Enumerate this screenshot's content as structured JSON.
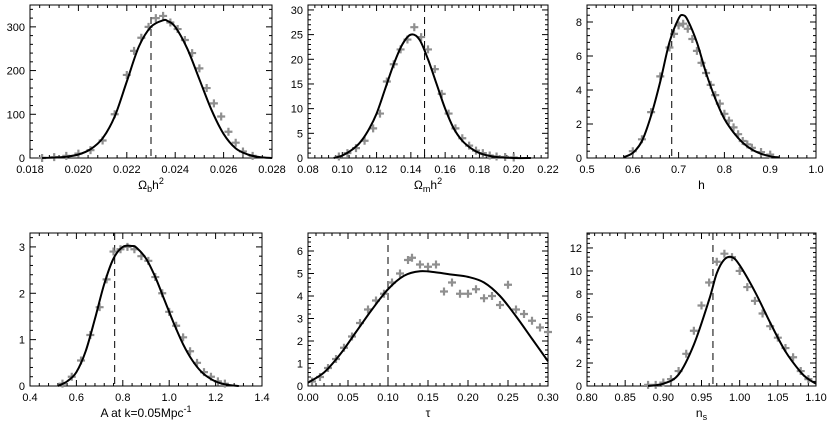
{
  "colors": {
    "curve": "#000000",
    "points": "#8f8f8f",
    "axis": "#000000"
  },
  "chart_data": [
    {
      "type": "line",
      "xlabel_base": "Ω",
      "xlabel_sub": "b",
      "xlabel_tail": "h",
      "xlabel_sup": "2",
      "xlim": [
        0.018,
        0.028
      ],
      "ylim": [
        0,
        350
      ],
      "xticks": [
        0.018,
        0.02,
        0.022,
        0.024,
        0.026,
        0.028
      ],
      "xticklabels": [
        "0.018",
        "0.020",
        "0.022",
        "0.024",
        "0.026",
        "0.028"
      ],
      "yticks": [
        0,
        100,
        200,
        300
      ],
      "yticklabels": [
        "0",
        "100",
        "200",
        "300"
      ],
      "vline": 0.023,
      "curve": {
        "x": [
          0.0185,
          0.019,
          0.0195,
          0.02,
          0.0205,
          0.021,
          0.0215,
          0.022,
          0.0225,
          0.023,
          0.0235,
          0.0237,
          0.024,
          0.0245,
          0.025,
          0.0255,
          0.026,
          0.0265,
          0.027,
          0.0275,
          0.028
        ],
        "y": [
          0,
          1,
          3,
          8,
          20,
          45,
          95,
          175,
          255,
          300,
          315,
          313,
          300,
          250,
          180,
          110,
          55,
          22,
          8,
          2,
          0
        ]
      },
      "points": {
        "x": [
          0.0185,
          0.019,
          0.0195,
          0.02,
          0.0205,
          0.021,
          0.0215,
          0.022,
          0.0223,
          0.0226,
          0.0229,
          0.0232,
          0.0235,
          0.0238,
          0.0241,
          0.0244,
          0.0247,
          0.025,
          0.0253,
          0.0256,
          0.0259,
          0.0262,
          0.0265,
          0.0268,
          0.0272
        ],
        "y": [
          0,
          2,
          5,
          10,
          18,
          40,
          100,
          190,
          245,
          275,
          300,
          320,
          325,
          310,
          295,
          270,
          240,
          205,
          160,
          125,
          95,
          60,
          35,
          15,
          5
        ]
      }
    },
    {
      "type": "line",
      "xlabel_base": "Ω",
      "xlabel_sub": "m",
      "xlabel_tail": "h",
      "xlabel_sup": "2",
      "xlim": [
        0.08,
        0.22
      ],
      "ylim": [
        0,
        31
      ],
      "xticks": [
        0.08,
        0.1,
        0.12,
        0.14,
        0.16,
        0.18,
        0.2,
        0.22
      ],
      "xticklabels": [
        "0.08",
        "0.10",
        "0.12",
        "0.14",
        "0.16",
        "0.18",
        "0.20",
        "0.22"
      ],
      "yticks": [
        0,
        5,
        10,
        15,
        20,
        25,
        30
      ],
      "yticklabels": [
        "0",
        "5",
        "10",
        "15",
        "20",
        "25",
        "30"
      ],
      "vline": 0.148,
      "curve": {
        "x": [
          0.095,
          0.1,
          0.105,
          0.11,
          0.115,
          0.12,
          0.125,
          0.13,
          0.135,
          0.14,
          0.145,
          0.15,
          0.155,
          0.16,
          0.165,
          0.17,
          0.175,
          0.18,
          0.185,
          0.19,
          0.2,
          0.21
        ],
        "y": [
          0,
          0.5,
          1.5,
          3,
          5.5,
          9,
          14,
          19,
          23,
          25,
          24,
          20,
          15,
          10,
          6,
          3.5,
          2,
          1,
          0.5,
          0.2,
          0,
          0
        ]
      },
      "points": {
        "x": [
          0.098,
          0.103,
          0.108,
          0.113,
          0.118,
          0.122,
          0.126,
          0.13,
          0.134,
          0.138,
          0.142,
          0.146,
          0.15,
          0.154,
          0.158,
          0.162,
          0.166,
          0.17,
          0.174,
          0.178,
          0.182,
          0.186,
          0.19,
          0.195,
          0.2
        ],
        "y": [
          0.3,
          1,
          2,
          3.5,
          6,
          9,
          15.5,
          19,
          22,
          24,
          26.5,
          24.5,
          22,
          18,
          13,
          9,
          6,
          4,
          2.5,
          1.5,
          1,
          0.5,
          0.3,
          0.2,
          0.1
        ]
      }
    },
    {
      "type": "line",
      "xlabel_base": "h",
      "xlabel_sub": "",
      "xlabel_tail": "",
      "xlabel_sup": "",
      "xlim": [
        0.5,
        1.0
      ],
      "ylim": [
        0,
        9
      ],
      "xticks": [
        0.5,
        0.6,
        0.7,
        0.8,
        0.9,
        1.0
      ],
      "xticklabels": [
        "0.5",
        "0.6",
        "0.7",
        "0.8",
        "0.9",
        "1.0"
      ],
      "yticks": [
        0,
        2,
        4,
        6,
        8
      ],
      "yticklabels": [
        "0",
        "2",
        "4",
        "6",
        "8"
      ],
      "vline": 0.685,
      "curve": {
        "x": [
          0.58,
          0.6,
          0.62,
          0.64,
          0.66,
          0.68,
          0.7,
          0.71,
          0.72,
          0.74,
          0.76,
          0.78,
          0.8,
          0.82,
          0.84,
          0.86,
          0.88,
          0.9,
          0.92
        ],
        "y": [
          0.05,
          0.3,
          1,
          2.5,
          4.5,
          6.8,
          8.2,
          8.4,
          8.1,
          6.8,
          5,
          3.5,
          2.3,
          1.5,
          0.9,
          0.5,
          0.25,
          0.1,
          0.03
        ]
      },
      "points": {
        "x": [
          0.6,
          0.62,
          0.64,
          0.66,
          0.68,
          0.69,
          0.7,
          0.71,
          0.72,
          0.73,
          0.74,
          0.75,
          0.76,
          0.77,
          0.78,
          0.79,
          0.8,
          0.81,
          0.82,
          0.83,
          0.84,
          0.85,
          0.86,
          0.88,
          0.9
        ],
        "y": [
          0.4,
          1.1,
          2.7,
          4.8,
          6.5,
          7.3,
          7.8,
          7.9,
          7.6,
          7,
          6.3,
          5.6,
          5,
          4.3,
          3.7,
          3.2,
          2.6,
          2.2,
          1.8,
          1.4,
          1,
          0.8,
          0.6,
          0.35,
          0.2
        ]
      }
    },
    {
      "type": "line",
      "xlabel_base": "A at k=0.05Mpc",
      "xlabel_sub": "",
      "xlabel_tail": "",
      "xlabel_sup": "-1",
      "xlim": [
        0.4,
        1.4
      ],
      "ylim": [
        0,
        3.3
      ],
      "xticks": [
        0.4,
        0.6,
        0.8,
        1.0,
        1.2,
        1.4
      ],
      "xticklabels": [
        "0.4",
        "0.6",
        "0.8",
        "1.0",
        "1.2",
        "1.4"
      ],
      "yticks": [
        0,
        1,
        2,
        3
      ],
      "yticklabels": [
        "0",
        "1",
        "2",
        "3"
      ],
      "vline": 0.765,
      "curve": {
        "x": [
          0.52,
          0.56,
          0.6,
          0.64,
          0.68,
          0.72,
          0.76,
          0.8,
          0.84,
          0.86,
          0.9,
          0.94,
          0.98,
          1.02,
          1.06,
          1.1,
          1.14,
          1.18,
          1.22,
          1.26,
          1.3
        ],
        "y": [
          0,
          0.1,
          0.3,
          0.75,
          1.45,
          2.2,
          2.75,
          3,
          3.02,
          2.98,
          2.75,
          2.35,
          1.85,
          1.35,
          0.9,
          0.55,
          0.3,
          0.15,
          0.06,
          0.02,
          0
        ]
      },
      "points": {
        "x": [
          0.54,
          0.58,
          0.62,
          0.66,
          0.7,
          0.73,
          0.76,
          0.79,
          0.82,
          0.85,
          0.88,
          0.91,
          0.94,
          0.97,
          1.0,
          1.03,
          1.06,
          1.09,
          1.12,
          1.15,
          1.18,
          1.21,
          1.24
        ],
        "y": [
          0.05,
          0.2,
          0.55,
          1.1,
          1.7,
          2.3,
          2.9,
          2.95,
          3,
          2.95,
          2.8,
          2.7,
          2.35,
          2,
          1.6,
          1.3,
          1.05,
          0.75,
          0.5,
          0.3,
          0.2,
          0.1,
          0.05
        ]
      }
    },
    {
      "type": "line",
      "xlabel_base": "τ",
      "xlabel_sub": "",
      "xlabel_tail": "",
      "xlabel_sup": "",
      "xlim": [
        0.0,
        0.3
      ],
      "ylim": [
        0,
        6.8
      ],
      "xticks": [
        0,
        0.05,
        0.1,
        0.15,
        0.2,
        0.25,
        0.3
      ],
      "xticklabels": [
        "0.00",
        "0.05",
        "0.10",
        "0.15",
        "0.20",
        "0.25",
        "0.30"
      ],
      "yticks": [
        0,
        1,
        2,
        3,
        4,
        5,
        6
      ],
      "yticklabels": [
        "0",
        "1",
        "2",
        "3",
        "4",
        "5",
        "6"
      ],
      "vline": 0.1,
      "curve": {
        "x": [
          0,
          0.02,
          0.04,
          0.06,
          0.08,
          0.1,
          0.12,
          0.14,
          0.16,
          0.18,
          0.2,
          0.22,
          0.24,
          0.26,
          0.28,
          0.3
        ],
        "y": [
          0.15,
          0.6,
          1.4,
          2.4,
          3.4,
          4.3,
          4.9,
          5.1,
          5.05,
          4.95,
          4.85,
          4.6,
          4.0,
          3.1,
          2.1,
          1.1
        ]
      },
      "points": {
        "x": [
          0.005,
          0.015,
          0.025,
          0.035,
          0.045,
          0.055,
          0.065,
          0.075,
          0.085,
          0.095,
          0.105,
          0.115,
          0.125,
          0.13,
          0.14,
          0.15,
          0.16,
          0.17,
          0.18,
          0.19,
          0.2,
          0.21,
          0.22,
          0.23,
          0.24,
          0.25,
          0.26,
          0.27,
          0.28,
          0.29,
          0.3
        ],
        "y": [
          0.2,
          0.4,
          0.8,
          1.2,
          1.7,
          2.2,
          2.8,
          3.4,
          3.8,
          4.1,
          4.6,
          5,
          5.6,
          5.7,
          5.4,
          5.3,
          5.4,
          4.2,
          4.6,
          4.1,
          4.1,
          4.3,
          3.9,
          4.0,
          3.6,
          4.5,
          3.4,
          3.2,
          2.9,
          2.6,
          2.4
        ]
      }
    },
    {
      "type": "line",
      "xlabel_base": "n",
      "xlabel_sub": "s",
      "xlabel_tail": "",
      "xlabel_sup": "",
      "xlim": [
        0.8,
        1.1
      ],
      "ylim": [
        0,
        13.3
      ],
      "xticks": [
        0.8,
        0.85,
        0.9,
        0.95,
        1.0,
        1.05,
        1.1
      ],
      "xticklabels": [
        "0.80",
        "0.85",
        "0.90",
        "0.95",
        "1.00",
        "1.05",
        "1.10"
      ],
      "yticks": [
        0,
        2,
        4,
        6,
        8,
        10,
        12
      ],
      "yticklabels": [
        "0",
        "2",
        "4",
        "6",
        "8",
        "10",
        "12"
      ],
      "vline": 0.965,
      "curve": {
        "x": [
          0.88,
          0.9,
          0.92,
          0.94,
          0.96,
          0.97,
          0.98,
          0.99,
          1.0,
          1.02,
          1.04,
          1.06,
          1.08,
          1.09,
          1.1
        ],
        "y": [
          0,
          0.2,
          1,
          3.6,
          7.5,
          9.8,
          11,
          11.2,
          10.5,
          8.2,
          5.5,
          3,
          1.2,
          0.6,
          0.2
        ]
      },
      "points": {
        "x": [
          0.88,
          0.89,
          0.9,
          0.91,
          0.92,
          0.93,
          0.94,
          0.95,
          0.96,
          0.97,
          0.98,
          0.99,
          1.0,
          1.01,
          1.02,
          1.03,
          1.04,
          1.05,
          1.06,
          1.07,
          1.08,
          1.09
        ],
        "y": [
          0.1,
          0.1,
          0.3,
          0.6,
          1.3,
          2.8,
          4.8,
          7,
          9,
          10.8,
          11.5,
          11.2,
          10,
          8.6,
          7.4,
          6.3,
          5.2,
          4.2,
          3.3,
          2.5,
          1.3,
          0.6
        ]
      }
    }
  ]
}
